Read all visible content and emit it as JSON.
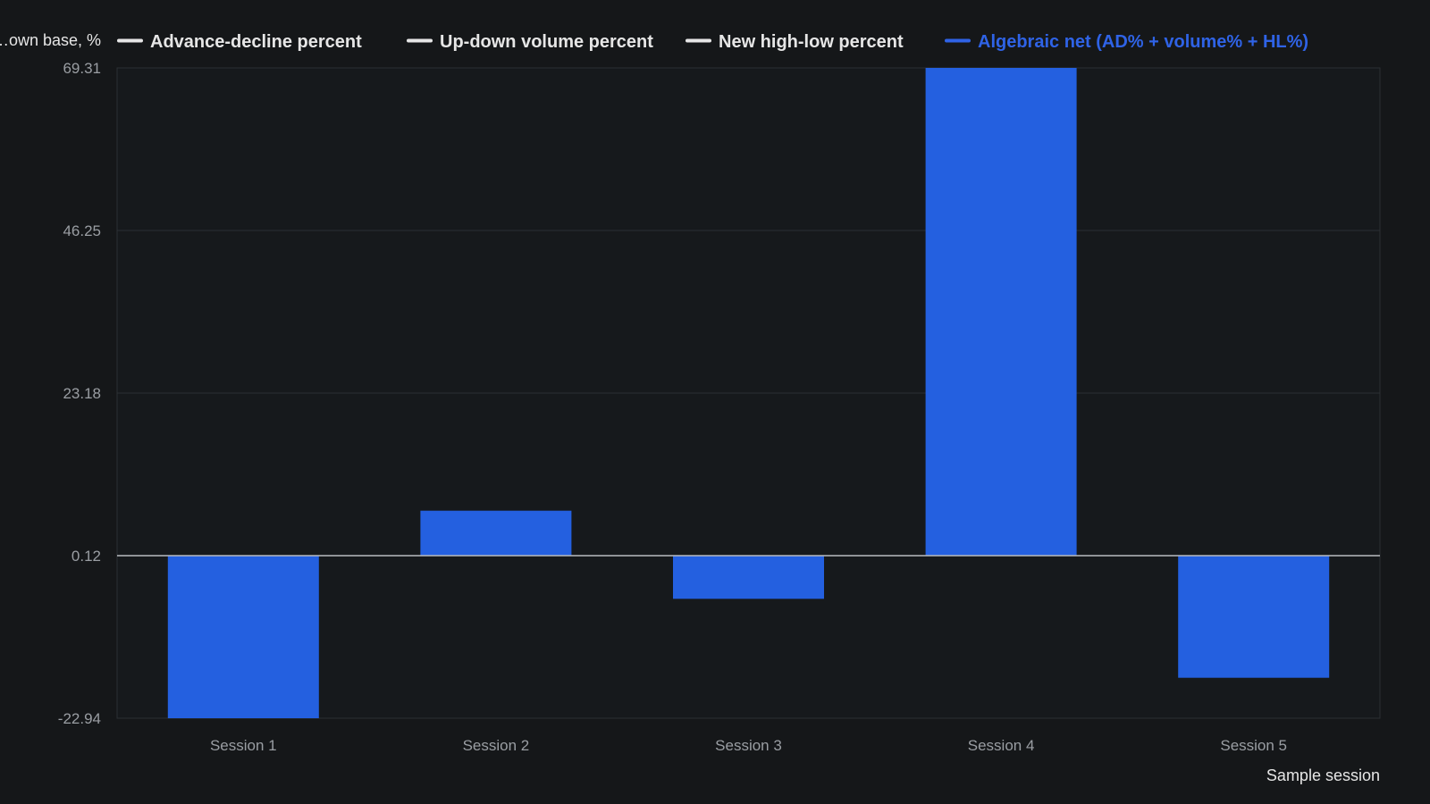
{
  "colors": {
    "background": "#151719",
    "plot_background": "#16191c",
    "bar": "#2460e0",
    "legend_neutral": "#e6e6e6",
    "legend_active": "#2f63e6",
    "gridline": "#2b2f33",
    "zero_line": "#b9bcc0",
    "tick_text": "#9a9ea3"
  },
  "chart_data": {
    "type": "bar",
    "ylabel": "…own base, %",
    "xlabel": "Sample session",
    "categories": [
      "Session 1",
      "Session 2",
      "Session 3",
      "Session 4",
      "Session 5"
    ],
    "ylim": [
      -22.94,
      69.31
    ],
    "yticks": [
      "69.31",
      "46.25",
      "23.18",
      "0.12",
      "-22.94"
    ],
    "ytick_values": [
      69.31,
      46.25,
      23.18,
      0.12,
      -22.94
    ],
    "zero_line": 0.12,
    "grid": true,
    "legend_position": "top",
    "legend": [
      {
        "name": "Advance-decline percent",
        "active": false
      },
      {
        "name": "Up-down volume percent",
        "active": false
      },
      {
        "name": "New high-low percent",
        "active": false
      },
      {
        "name": "Algebraic net (AD% + volume% + HL%)",
        "active": true
      }
    ],
    "series": [
      {
        "name": "Algebraic net (AD% + volume% + HL%)",
        "values": [
          -22.94,
          6.5,
          -6.0,
          69.31,
          -17.2
        ]
      }
    ]
  }
}
